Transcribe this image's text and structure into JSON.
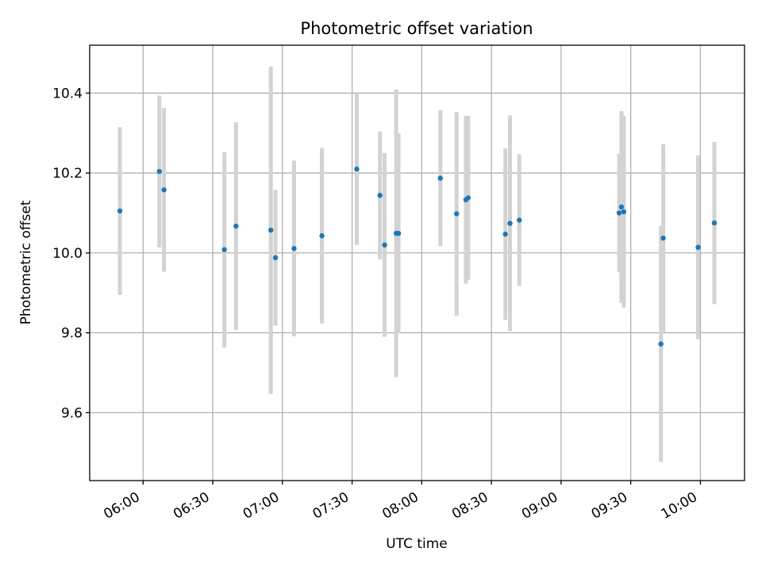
{
  "chart_data": {
    "type": "scatter",
    "title": "Photometric offset variation",
    "xlabel": "UTC time",
    "ylabel": "Photometric offset",
    "x_type": "time",
    "xlim": [
      "05:37",
      "10:19"
    ],
    "ylim": [
      9.43,
      10.52
    ],
    "x_ticks": [
      "06:00",
      "06:30",
      "07:00",
      "07:30",
      "08:00",
      "08:30",
      "09:00",
      "09:30",
      "10:00"
    ],
    "y_ticks": [
      "9.6",
      "9.8",
      "10.0",
      "10.2",
      "10.4"
    ],
    "grid": true,
    "series": [
      {
        "error_color": "#d3d3d3",
        "marker_color": "#1f77b4",
        "points": [
          {
            "x": "05:50",
            "y": 10.105,
            "err": 0.21
          },
          {
            "x": "06:07",
            "y": 10.204,
            "err": 0.19
          },
          {
            "x": "06:09",
            "y": 10.158,
            "err": 0.205
          },
          {
            "x": "06:35",
            "y": 10.008,
            "err": 0.245
          },
          {
            "x": "06:40",
            "y": 10.067,
            "err": 0.26
          },
          {
            "x": "06:55",
            "y": 10.057,
            "err": 0.41
          },
          {
            "x": "06:57",
            "y": 9.988,
            "err": 0.17
          },
          {
            "x": "07:05",
            "y": 10.011,
            "err": 0.22
          },
          {
            "x": "07:17",
            "y": 10.043,
            "err": 0.22
          },
          {
            "x": "07:32",
            "y": 10.21,
            "err": 0.19
          },
          {
            "x": "07:42",
            "y": 10.144,
            "err": 0.16
          },
          {
            "x": "07:44",
            "y": 10.02,
            "err": 0.23
          },
          {
            "x": "07:49",
            "y": 10.049,
            "err": 0.36
          },
          {
            "x": "07:50",
            "y": 10.049,
            "err": 0.25
          },
          {
            "x": "08:08",
            "y": 10.187,
            "err": 0.17
          },
          {
            "x": "08:15",
            "y": 10.098,
            "err": 0.255
          },
          {
            "x": "08:19",
            "y": 10.133,
            "err": 0.21
          },
          {
            "x": "08:20",
            "y": 10.138,
            "err": 0.205
          },
          {
            "x": "08:36",
            "y": 10.047,
            "err": 0.215
          },
          {
            "x": "08:38",
            "y": 10.074,
            "err": 0.27
          },
          {
            "x": "08:42",
            "y": 10.082,
            "err": 0.165
          },
          {
            "x": "09:25",
            "y": 10.1,
            "err": 0.148
          },
          {
            "x": "09:26",
            "y": 10.115,
            "err": 0.24
          },
          {
            "x": "09:27",
            "y": 10.103,
            "err": 0.24
          },
          {
            "x": "09:43",
            "y": 9.772,
            "err": 0.295
          },
          {
            "x": "09:44",
            "y": 10.037,
            "err": 0.235
          },
          {
            "x": "09:59",
            "y": 10.014,
            "err": 0.23
          },
          {
            "x": "10:06",
            "y": 10.075,
            "err": 0.203
          }
        ]
      }
    ]
  }
}
